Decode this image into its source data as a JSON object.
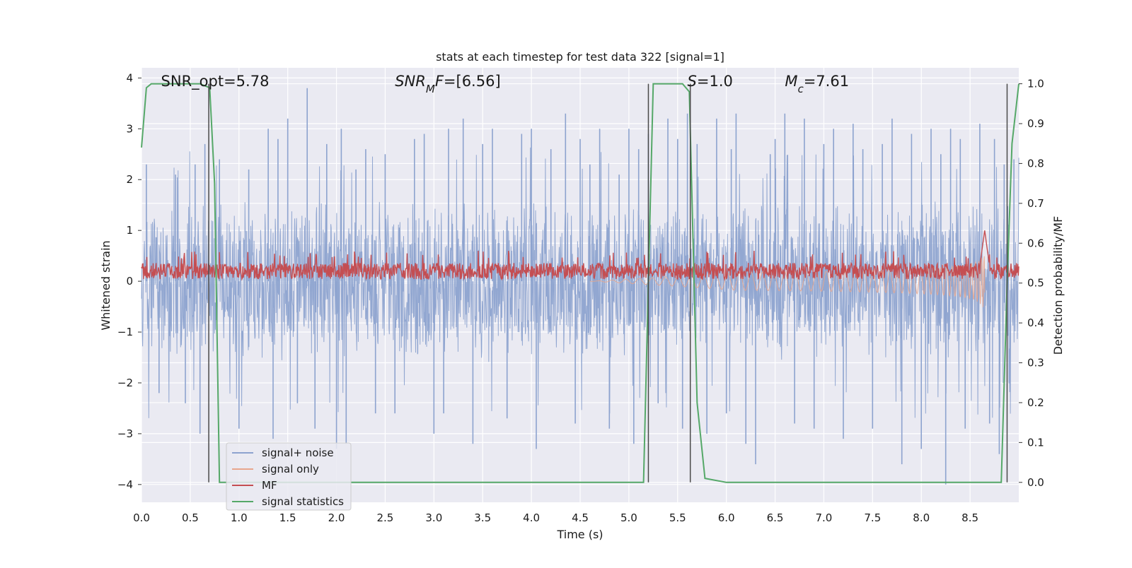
{
  "chart_data": {
    "type": "line",
    "title": "stats at each timestep for test data 322 [signal=1]",
    "xlabel": "Time (s)",
    "ylabel": "Whitened strain",
    "ylabel_right": "Detection probability/MF",
    "xlim": [
      0,
      9.0
    ],
    "ylim": [
      -4.35,
      4.2
    ],
    "ylim_right": [
      -0.05,
      1.04
    ],
    "grid": true,
    "legend_position": "lower-left",
    "x_ticks": [
      0.0,
      0.5,
      1.0,
      1.5,
      2.0,
      2.5,
      3.0,
      3.5,
      4.0,
      4.5,
      5.0,
      5.5,
      6.0,
      6.5,
      7.0,
      7.5,
      8.0,
      8.5
    ],
    "x_tick_labels": [
      "0.0",
      "0.5",
      "1.0",
      "1.5",
      "2.0",
      "2.5",
      "3.0",
      "3.5",
      "4.0",
      "4.5",
      "5.0",
      "5.5",
      "6.0",
      "6.5",
      "7.0",
      "7.5",
      "8.0",
      "8.5"
    ],
    "y_ticks": [
      4,
      3,
      2,
      1,
      0,
      -1,
      -2,
      -3,
      -4
    ],
    "y_tick_labels": [
      "4",
      "3",
      "2",
      "1",
      "0",
      "−1",
      "−2",
      "−3",
      "−4"
    ],
    "y_right_ticks": [
      1.0,
      0.9,
      0.8,
      0.7,
      0.6,
      0.5,
      0.4,
      0.3,
      0.2,
      0.1,
      0.0
    ],
    "y_right_tick_labels": [
      "1.0",
      "0.9",
      "0.8",
      "0.7",
      "0.6",
      "0.5",
      "0.4",
      "0.3",
      "0.2",
      "0.1",
      "0.0"
    ],
    "annotations": [
      {
        "x": 0.2,
        "y": 3.95,
        "parts": [
          {
            "t": "SNR_opt=5.78",
            "i": false
          }
        ]
      },
      {
        "x": 2.6,
        "y": 3.95,
        "parts": [
          {
            "t": "SNR",
            "i": true
          },
          {
            "t": "M",
            "i": true,
            "sub": true
          },
          {
            "t": "F",
            "i": true
          },
          {
            "t": "=[6.56]",
            "i": false
          }
        ]
      },
      {
        "x": 5.6,
        "y": 3.95,
        "parts": [
          {
            "t": "S",
            "i": true
          },
          {
            "t": "=1.0",
            "i": false
          }
        ]
      },
      {
        "x": 6.6,
        "y": 3.95,
        "parts": [
          {
            "t": "M",
            "i": true
          },
          {
            "t": "c",
            "i": true,
            "sub": true
          },
          {
            "t": "=7.61",
            "i": false
          }
        ]
      }
    ],
    "series": [
      {
        "name": "signal+ noise",
        "color": "#8da3cf",
        "kind": "noise",
        "envelope_abs": 1.6,
        "peaks": [
          [
            0.05,
            2.3
          ],
          [
            0.18,
            -2.2
          ],
          [
            0.35,
            2.1
          ],
          [
            0.45,
            -2.4
          ],
          [
            0.55,
            2.3
          ],
          [
            0.6,
            -3.0
          ],
          [
            0.65,
            2.7
          ],
          [
            0.8,
            2.4
          ],
          [
            1.0,
            -2.9
          ],
          [
            1.1,
            2.2
          ],
          [
            1.3,
            3.0
          ],
          [
            1.35,
            -3.1
          ],
          [
            1.4,
            2.8
          ],
          [
            1.5,
            3.2
          ],
          [
            1.6,
            -2.4
          ],
          [
            1.7,
            3.8
          ],
          [
            1.78,
            -2.9
          ],
          [
            1.9,
            2.7
          ],
          [
            2.0,
            -3.3
          ],
          [
            2.05,
            3.0
          ],
          [
            2.1,
            -3.2
          ],
          [
            2.2,
            2.2
          ],
          [
            2.3,
            2.6
          ],
          [
            2.4,
            -2.6
          ],
          [
            2.5,
            2.5
          ],
          [
            2.6,
            -2.6
          ],
          [
            2.8,
            2.8
          ],
          [
            2.9,
            2.9
          ],
          [
            3.0,
            -3.0
          ],
          [
            3.1,
            -2.6
          ],
          [
            3.15,
            3.0
          ],
          [
            3.3,
            3.2
          ],
          [
            3.4,
            -3.2
          ],
          [
            3.5,
            2.7
          ],
          [
            3.6,
            3.0
          ],
          [
            3.75,
            -2.7
          ],
          [
            3.9,
            2.9
          ],
          [
            4.0,
            3.0
          ],
          [
            4.05,
            -3.3
          ],
          [
            4.2,
            2.6
          ],
          [
            4.35,
            3.3
          ],
          [
            4.45,
            -2.8
          ],
          [
            4.5,
            2.8
          ],
          [
            4.6,
            2.3
          ],
          [
            4.7,
            3.0
          ],
          [
            4.8,
            -2.9
          ],
          [
            4.9,
            2.1
          ],
          [
            5.0,
            3.0
          ],
          [
            5.05,
            -3.2
          ],
          [
            5.1,
            2.6
          ],
          [
            5.2,
            2.9
          ],
          [
            5.3,
            -2.4
          ],
          [
            5.4,
            3.2
          ],
          [
            5.5,
            2.8
          ],
          [
            5.55,
            -2.9
          ],
          [
            5.6,
            3.3
          ],
          [
            5.7,
            2.7
          ],
          [
            5.8,
            -3.0
          ],
          [
            5.9,
            3.2
          ],
          [
            6.0,
            -2.6
          ],
          [
            6.05,
            2.6
          ],
          [
            6.1,
            3.3
          ],
          [
            6.2,
            -3.2
          ],
          [
            6.3,
            -3.6
          ],
          [
            6.45,
            2.5
          ],
          [
            6.5,
            2.8
          ],
          [
            6.6,
            3.3
          ],
          [
            6.7,
            -2.8
          ],
          [
            6.8,
            3.2
          ],
          [
            6.9,
            -2.9
          ],
          [
            7.0,
            2.7
          ],
          [
            7.1,
            3.0
          ],
          [
            7.2,
            -3.1
          ],
          [
            7.3,
            3.1
          ],
          [
            7.4,
            2.6
          ],
          [
            7.5,
            -2.9
          ],
          [
            7.6,
            2.7
          ],
          [
            7.7,
            3.2
          ],
          [
            7.8,
            -3.6
          ],
          [
            7.9,
            2.9
          ],
          [
            8.0,
            -3.3
          ],
          [
            8.1,
            3.0
          ],
          [
            8.2,
            2.5
          ],
          [
            8.25,
            -4.0
          ],
          [
            8.3,
            3.0
          ],
          [
            8.4,
            2.8
          ],
          [
            8.45,
            -2.9
          ],
          [
            8.6,
            3.1
          ],
          [
            8.7,
            -2.8
          ],
          [
            8.75,
            2.8
          ],
          [
            8.8,
            -3.4
          ],
          [
            8.85,
            2.3
          ],
          [
            8.95,
            2.4
          ]
        ]
      },
      {
        "name": "signal only",
        "color": "#e8a68d",
        "kind": "chirp",
        "t_end": 8.65,
        "amp_end": 0.6
      },
      {
        "name": "MF",
        "color": "#c44e52",
        "kind": "mf",
        "baseline": 0.2,
        "band": 0.2,
        "peak": [
          8.65,
          1.0
        ]
      },
      {
        "name": "signal statistics",
        "color": "#55a868",
        "kind": "line",
        "axis": "right",
        "x": [
          0.0,
          0.05,
          0.1,
          0.6,
          0.7,
          0.75,
          0.8,
          5.15,
          5.2,
          5.25,
          5.55,
          5.62,
          5.7,
          5.78,
          6.0,
          8.82,
          8.88,
          8.93,
          9.0
        ],
        "y": [
          0.84,
          0.99,
          1.0,
          1.0,
          0.99,
          0.75,
          0.0,
          0.0,
          0.5,
          1.0,
          1.0,
          0.98,
          0.2,
          0.01,
          0.0,
          0.0,
          0.5,
          0.85,
          1.0
        ]
      }
    ],
    "vlines": [
      0.69,
      5.2,
      5.63,
      8.88
    ]
  }
}
